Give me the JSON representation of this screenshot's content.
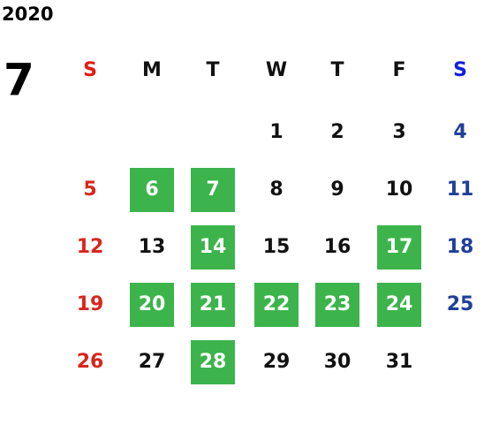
{
  "year": "2020",
  "month": "7",
  "weekdays": [
    "S",
    "M",
    "T",
    "W",
    "T",
    "F",
    "S"
  ],
  "weeks": [
    [
      null,
      null,
      null,
      {
        "day": 1
      },
      {
        "day": 2
      },
      {
        "day": 3
      },
      {
        "day": 4
      }
    ],
    [
      {
        "day": 5
      },
      {
        "day": 6,
        "highlight": true
      },
      {
        "day": 7,
        "highlight": true
      },
      {
        "day": 8
      },
      {
        "day": 9
      },
      {
        "day": 10
      },
      {
        "day": 11
      }
    ],
    [
      {
        "day": 12
      },
      {
        "day": 13
      },
      {
        "day": 14,
        "highlight": true
      },
      {
        "day": 15
      },
      {
        "day": 16
      },
      {
        "day": 17,
        "highlight": true
      },
      {
        "day": 18
      }
    ],
    [
      {
        "day": 19
      },
      {
        "day": 20,
        "highlight": true
      },
      {
        "day": 21,
        "highlight": true
      },
      {
        "day": 22,
        "highlight": true
      },
      {
        "day": 23,
        "highlight": true
      },
      {
        "day": 24,
        "highlight": true
      },
      {
        "day": 25
      }
    ],
    [
      {
        "day": 26
      },
      {
        "day": 27
      },
      {
        "day": 28,
        "highlight": true
      },
      {
        "day": 29
      },
      {
        "day": 30
      },
      {
        "day": 31
      },
      null
    ]
  ],
  "colors": {
    "sunday_header": "#e8190f",
    "saturday_header": "#1020e0",
    "sunday": "#d9261c",
    "saturday": "#1f3f9a",
    "weekday": "#111111",
    "highlight": "#3cb44b",
    "highlight_text": "#ffffff"
  }
}
